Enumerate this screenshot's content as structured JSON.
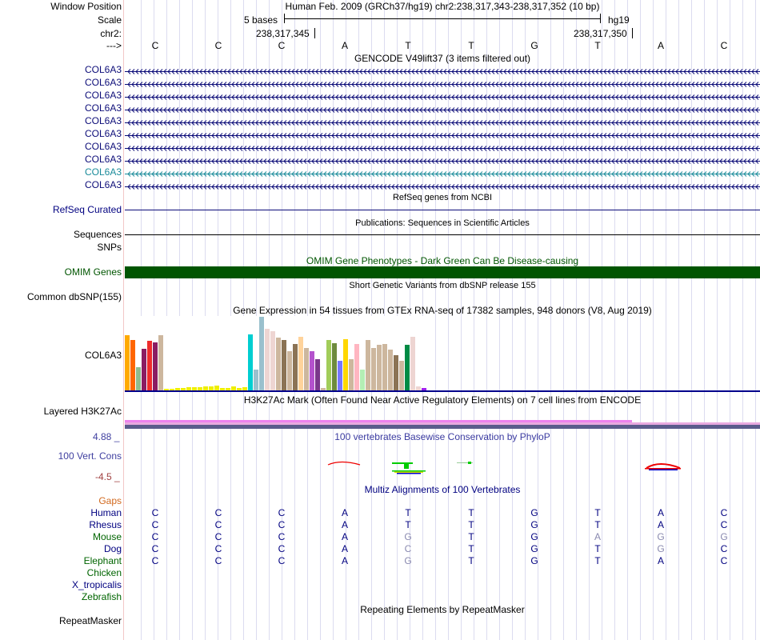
{
  "header": {
    "window_position_label": "Window Position",
    "window_position_value": "Human Feb. 2009 (GRCh37/hg19)   chr2:238,317,343-238,317,352 (10 bp)",
    "scale_label": "Scale",
    "scale_size": "5 bases",
    "scale_db": "hg19",
    "chrom_label": "chr2:",
    "pos_left": "238,317,345",
    "pos_right": "238,317,350",
    "strand_label": "--->"
  },
  "bases": [
    "C",
    "C",
    "C",
    "A",
    "T",
    "T",
    "G",
    "T",
    "A",
    "C"
  ],
  "gencode": {
    "title": "GENCODE V49lift37 (3 items filtered out)",
    "items": [
      "COL6A3",
      "COL6A3",
      "COL6A3",
      "COL6A3",
      "COL6A3",
      "COL6A3",
      "COL6A3",
      "COL6A3",
      "COL6A3",
      "COL6A3"
    ],
    "highlight_index": 8
  },
  "refseq": {
    "title": "RefSeq genes from NCBI",
    "label": "RefSeq Curated"
  },
  "publications": {
    "title": "Publications: Sequences in Scientific Articles",
    "label1": "Sequences",
    "label2": "SNPs"
  },
  "omim": {
    "title": "OMIM Gene Phenotypes - Dark Green Can Be Disease-causing",
    "label": "OMIM Genes",
    "color": "#005500"
  },
  "dbsnp": {
    "title": "Short Genetic Variants from dbSNP release 155",
    "label": "Common dbSNP(155)"
  },
  "gtex": {
    "title": "Gene Expression in 54 tissues from GTEx RNA-seq of 17382 samples, 948 donors (V8, Aug 2019)",
    "label": "COL6A3",
    "values": [
      0.75,
      0.68,
      0.32,
      0.57,
      0.67,
      0.65,
      0.75,
      0.02,
      0.02,
      0.03,
      0.03,
      0.04,
      0.04,
      0.04,
      0.05,
      0.05,
      0.06,
      0.03,
      0.03,
      0.05,
      0.03,
      0.04,
      0.76,
      0.28,
      1.0,
      0.84,
      0.8,
      0.72,
      0.68,
      0.53,
      0.63,
      0.73,
      0.58,
      0.53,
      0.42,
      0.03,
      0.68,
      0.64,
      0.4,
      0.7,
      0.42,
      0.63,
      0.28,
      0.68,
      0.58,
      0.62,
      0.63,
      0.55,
      0.48,
      0.4,
      0.62,
      0.73,
      0.05,
      0.03
    ],
    "colors": [
      "#ffaa00",
      "#ff6600",
      "#8fbc8f",
      "#8b1c62",
      "#ee2c2c",
      "#8b1c62",
      "#cdb79e",
      "#eeee00",
      "#eeee00",
      "#eeee00",
      "#eeee00",
      "#eeee00",
      "#eeee00",
      "#eeee00",
      "#eeee00",
      "#eeee00",
      "#eeee00",
      "#eeee00",
      "#eeee00",
      "#eeee00",
      "#eeee00",
      "#eeee00",
      "#00ced1",
      "#9ac0cd",
      "#9ac0cd",
      "#eed5d2",
      "#eed5d2",
      "#cdb79e",
      "#8b7355",
      "#cdb79e",
      "#8b7355",
      "#ffd39b",
      "#cdb79e",
      "#b452cd",
      "#7a378b",
      "#cdb79e",
      "#a2cd5a",
      "#6e8b3d",
      "#7777ff",
      "#ffd700",
      "#cdb79e",
      "#ffb6c1",
      "#b4eeb4",
      "#cdb79e",
      "#cdb79e",
      "#cdb79e",
      "#cdb79e",
      "#cdb79e",
      "#8b7355",
      "#cdb79e",
      "#008b45",
      "#eed5d2",
      "#eed5d2",
      "#a020f0"
    ]
  },
  "h3k27ac": {
    "title": "H3K27Ac Mark (Often Found Near Active Regulatory Elements) on 7 cell lines from ENCODE",
    "label": "Layered H3K27Ac"
  },
  "phylop": {
    "title": "100 vertebrates Basewise Conservation by PhyloP",
    "label": "100 Vert. Cons",
    "max": "4.88 _",
    "min": "-4.5 _"
  },
  "multiz": {
    "title": "Multiz Alignments of 100 Vertebrates",
    "gaps_label": "Gaps",
    "species": [
      {
        "name": "Human",
        "color": "#000080",
        "bases": [
          "C",
          "C",
          "C",
          "A",
          "T",
          "T",
          "G",
          "T",
          "A",
          "C"
        ],
        "dim": [
          false,
          false,
          false,
          false,
          false,
          false,
          false,
          false,
          false,
          false
        ]
      },
      {
        "name": "Rhesus",
        "color": "#000080",
        "bases": [
          "C",
          "C",
          "C",
          "A",
          "T",
          "T",
          "G",
          "T",
          "A",
          "C"
        ],
        "dim": [
          false,
          false,
          false,
          false,
          false,
          false,
          false,
          false,
          false,
          false
        ]
      },
      {
        "name": "Mouse",
        "color": "#006400",
        "bases": [
          "C",
          "C",
          "C",
          "A",
          "G",
          "T",
          "G",
          "A",
          "G",
          "G"
        ],
        "dim": [
          false,
          false,
          false,
          false,
          true,
          false,
          false,
          true,
          true,
          true
        ]
      },
      {
        "name": "Dog",
        "color": "#000080",
        "bases": [
          "C",
          "C",
          "C",
          "A",
          "C",
          "T",
          "G",
          "T",
          "G",
          "C"
        ],
        "dim": [
          false,
          false,
          false,
          false,
          true,
          false,
          false,
          false,
          true,
          false
        ]
      },
      {
        "name": "Elephant",
        "color": "#006400",
        "bases": [
          "C",
          "C",
          "C",
          "A",
          "G",
          "T",
          "G",
          "T",
          "A",
          "C"
        ],
        "dim": [
          false,
          false,
          false,
          false,
          true,
          false,
          false,
          false,
          false,
          false
        ]
      },
      {
        "name": "Chicken",
        "color": "#006400",
        "bases": [],
        "dim": []
      },
      {
        "name": "X_tropicalis",
        "color": "#000080",
        "bases": [],
        "dim": []
      },
      {
        "name": "Zebrafish",
        "color": "#006400",
        "bases": [],
        "dim": []
      }
    ]
  },
  "repeatmasker": {
    "title": "Repeating Elements by RepeatMasker",
    "label": "RepeatMasker"
  }
}
